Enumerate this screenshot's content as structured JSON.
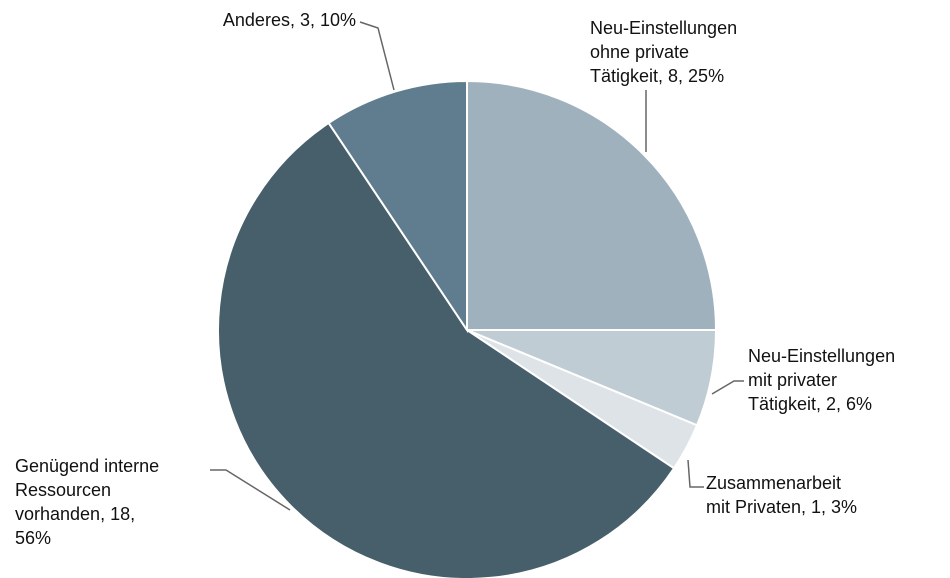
{
  "chart_data": {
    "type": "pie",
    "labels": [
      "Neu-Einstellungen\nohne private\nTätigkeit, 8, 25%",
      "Neu-Einstellungen\nmit privater\nTätigkeit, 2, 6%",
      "Zusammenarbeit\nmit Privaten, 1, 3%",
      "Genügend interne\nRessourcen\nvorhanden, 18,\n56%",
      "Anderes, 3, 10%"
    ],
    "values": [
      8,
      2,
      1,
      18,
      3
    ],
    "colors": [
      "#9fb1bd",
      "#bfccd3",
      "#dde3e7",
      "#475f6b",
      "#5f7d8e"
    ]
  }
}
